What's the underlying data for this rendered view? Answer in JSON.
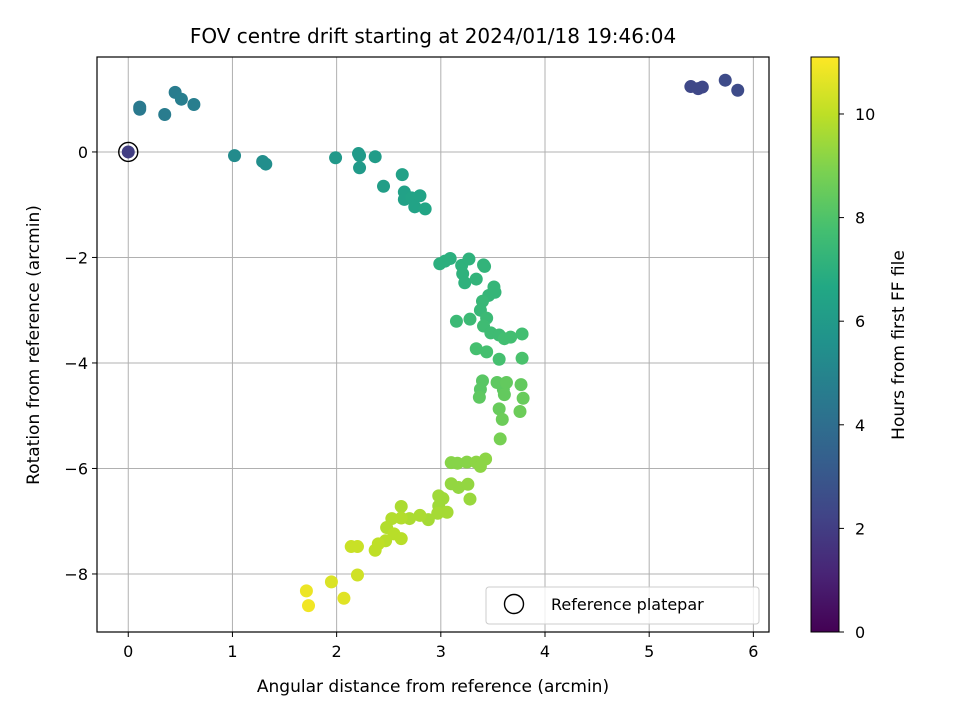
{
  "chart_data": {
    "type": "scatter",
    "title": "FOV centre drift starting at 2024/01/18 19:46:04",
    "xlabel": "Angular distance from reference (arcmin)",
    "ylabel": "Rotation from reference (arcmin)",
    "xlim": [
      -0.3,
      6.15
    ],
    "ylim": [
      -9.1,
      1.8
    ],
    "xticks": [
      0,
      1,
      2,
      3,
      4,
      5,
      6
    ],
    "xtick_labels": [
      "0",
      "1",
      "2",
      "3",
      "4",
      "5",
      "6"
    ],
    "yticks": [
      0,
      -2,
      -4,
      -6,
      -8
    ],
    "ytick_labels": [
      "0",
      "−2",
      "−4",
      "−6",
      "−8"
    ],
    "grid": true,
    "legend": {
      "position": "lower right",
      "entries": [
        "Reference platepar"
      ]
    },
    "reference_point": {
      "x": 0,
      "y": 0
    },
    "colorbar": {
      "label": "Hours from first FF file",
      "range": [
        0,
        11.1
      ],
      "ticks": [
        0,
        2,
        4,
        6,
        8,
        10
      ],
      "tick_labels": [
        "0",
        "2",
        "4",
        "6",
        "8",
        "10"
      ],
      "colormap": "viridis"
    },
    "points": [
      {
        "x": 0.0,
        "y": 0.0,
        "h": 2.0
      },
      {
        "x": 5.4,
        "y": 1.24,
        "h": 2.4
      },
      {
        "x": 5.47,
        "y": 1.2,
        "h": 2.4
      },
      {
        "x": 5.51,
        "y": 1.23,
        "h": 2.4
      },
      {
        "x": 5.73,
        "y": 1.36,
        "h": 2.5
      },
      {
        "x": 5.85,
        "y": 1.17,
        "h": 2.5
      },
      {
        "x": 0.11,
        "y": 0.81,
        "h": 4.5
      },
      {
        "x": 0.11,
        "y": 0.85,
        "h": 4.5
      },
      {
        "x": 0.35,
        "y": 0.71,
        "h": 4.6
      },
      {
        "x": 0.45,
        "y": 1.13,
        "h": 4.6
      },
      {
        "x": 0.51,
        "y": 1.0,
        "h": 4.7
      },
      {
        "x": 0.63,
        "y": 0.9,
        "h": 4.7
      },
      {
        "x": 1.02,
        "y": -0.07,
        "h": 5.3
      },
      {
        "x": 1.29,
        "y": -0.18,
        "h": 5.4
      },
      {
        "x": 1.32,
        "y": -0.23,
        "h": 5.4
      },
      {
        "x": 1.99,
        "y": -0.11,
        "h": 5.9
      },
      {
        "x": 2.21,
        "y": -0.03,
        "h": 6.0
      },
      {
        "x": 2.22,
        "y": -0.07,
        "h": 6.0
      },
      {
        "x": 2.22,
        "y": -0.3,
        "h": 6.0
      },
      {
        "x": 2.37,
        "y": -0.09,
        "h": 6.1
      },
      {
        "x": 2.45,
        "y": -0.65,
        "h": 6.2
      },
      {
        "x": 2.63,
        "y": -0.43,
        "h": 6.3
      },
      {
        "x": 2.65,
        "y": -0.76,
        "h": 6.3
      },
      {
        "x": 2.65,
        "y": -0.9,
        "h": 6.3
      },
      {
        "x": 2.72,
        "y": -0.87,
        "h": 6.4
      },
      {
        "x": 2.75,
        "y": -1.04,
        "h": 6.4
      },
      {
        "x": 2.8,
        "y": -0.83,
        "h": 6.4
      },
      {
        "x": 2.85,
        "y": -1.08,
        "h": 6.5
      },
      {
        "x": 2.99,
        "y": -2.12,
        "h": 7.0
      },
      {
        "x": 3.04,
        "y": -2.07,
        "h": 7.0
      },
      {
        "x": 3.09,
        "y": -2.02,
        "h": 7.0
      },
      {
        "x": 3.2,
        "y": -2.15,
        "h": 7.1
      },
      {
        "x": 3.21,
        "y": -2.31,
        "h": 7.1
      },
      {
        "x": 3.23,
        "y": -2.48,
        "h": 7.1
      },
      {
        "x": 3.27,
        "y": -2.03,
        "h": 7.1
      },
      {
        "x": 3.34,
        "y": -2.41,
        "h": 7.2
      },
      {
        "x": 3.41,
        "y": -2.14,
        "h": 7.2
      },
      {
        "x": 3.42,
        "y": -2.17,
        "h": 7.2
      },
      {
        "x": 3.46,
        "y": -2.72,
        "h": 7.3
      },
      {
        "x": 3.51,
        "y": -2.56,
        "h": 7.3
      },
      {
        "x": 3.52,
        "y": -2.66,
        "h": 7.3
      },
      {
        "x": 3.4,
        "y": -2.83,
        "h": 7.4
      },
      {
        "x": 3.38,
        "y": -3.0,
        "h": 7.4
      },
      {
        "x": 3.44,
        "y": -3.15,
        "h": 7.5
      },
      {
        "x": 3.15,
        "y": -3.21,
        "h": 7.5
      },
      {
        "x": 3.28,
        "y": -3.17,
        "h": 7.5
      },
      {
        "x": 3.41,
        "y": -3.3,
        "h": 7.6
      },
      {
        "x": 3.48,
        "y": -3.43,
        "h": 7.6
      },
      {
        "x": 3.56,
        "y": -3.47,
        "h": 7.6
      },
      {
        "x": 3.61,
        "y": -3.54,
        "h": 7.7
      },
      {
        "x": 3.67,
        "y": -3.51,
        "h": 7.7
      },
      {
        "x": 3.78,
        "y": -3.45,
        "h": 7.7
      },
      {
        "x": 3.34,
        "y": -3.73,
        "h": 7.8
      },
      {
        "x": 3.44,
        "y": -3.79,
        "h": 7.8
      },
      {
        "x": 3.56,
        "y": -3.93,
        "h": 7.8
      },
      {
        "x": 3.78,
        "y": -3.91,
        "h": 7.9
      },
      {
        "x": 3.4,
        "y": -4.34,
        "h": 8.2
      },
      {
        "x": 3.38,
        "y": -4.5,
        "h": 8.2
      },
      {
        "x": 3.37,
        "y": -4.65,
        "h": 8.3
      },
      {
        "x": 3.54,
        "y": -4.37,
        "h": 8.3
      },
      {
        "x": 3.6,
        "y": -4.5,
        "h": 8.3
      },
      {
        "x": 3.63,
        "y": -4.37,
        "h": 8.4
      },
      {
        "x": 3.61,
        "y": -4.6,
        "h": 8.4
      },
      {
        "x": 3.77,
        "y": -4.41,
        "h": 8.4
      },
      {
        "x": 3.79,
        "y": -4.67,
        "h": 8.5
      },
      {
        "x": 3.56,
        "y": -4.87,
        "h": 8.5
      },
      {
        "x": 3.59,
        "y": -5.07,
        "h": 8.6
      },
      {
        "x": 3.76,
        "y": -4.92,
        "h": 8.6
      },
      {
        "x": 3.57,
        "y": -5.44,
        "h": 8.8
      },
      {
        "x": 3.1,
        "y": -5.89,
        "h": 9.1
      },
      {
        "x": 3.16,
        "y": -5.9,
        "h": 9.1
      },
      {
        "x": 3.25,
        "y": -5.88,
        "h": 9.1
      },
      {
        "x": 3.34,
        "y": -5.88,
        "h": 9.2
      },
      {
        "x": 3.43,
        "y": -5.82,
        "h": 9.2
      },
      {
        "x": 3.38,
        "y": -5.96,
        "h": 9.2
      },
      {
        "x": 3.1,
        "y": -6.29,
        "h": 9.3
      },
      {
        "x": 3.17,
        "y": -6.36,
        "h": 9.3
      },
      {
        "x": 3.26,
        "y": -6.3,
        "h": 9.3
      },
      {
        "x": 3.28,
        "y": -6.58,
        "h": 9.4
      },
      {
        "x": 2.98,
        "y": -6.52,
        "h": 9.5
      },
      {
        "x": 3.02,
        "y": -6.57,
        "h": 9.5
      },
      {
        "x": 2.98,
        "y": -6.71,
        "h": 9.5
      },
      {
        "x": 3.06,
        "y": -6.83,
        "h": 9.6
      },
      {
        "x": 2.97,
        "y": -6.85,
        "h": 9.6
      },
      {
        "x": 2.88,
        "y": -6.97,
        "h": 9.6
      },
      {
        "x": 2.8,
        "y": -6.89,
        "h": 9.7
      },
      {
        "x": 2.7,
        "y": -6.95,
        "h": 9.7
      },
      {
        "x": 2.62,
        "y": -6.72,
        "h": 9.7
      },
      {
        "x": 2.53,
        "y": -6.95,
        "h": 9.8
      },
      {
        "x": 2.62,
        "y": -6.94,
        "h": 9.8
      },
      {
        "x": 2.48,
        "y": -7.12,
        "h": 9.8
      },
      {
        "x": 2.55,
        "y": -7.24,
        "h": 9.9
      },
      {
        "x": 2.62,
        "y": -7.33,
        "h": 9.9
      },
      {
        "x": 2.47,
        "y": -7.37,
        "h": 9.9
      },
      {
        "x": 2.4,
        "y": -7.43,
        "h": 10.0
      },
      {
        "x": 2.37,
        "y": -7.55,
        "h": 10.0
      },
      {
        "x": 2.14,
        "y": -7.48,
        "h": 10.2
      },
      {
        "x": 2.2,
        "y": -7.48,
        "h": 10.2
      },
      {
        "x": 2.2,
        "y": -8.02,
        "h": 10.3
      },
      {
        "x": 1.95,
        "y": -8.15,
        "h": 10.5
      },
      {
        "x": 2.07,
        "y": -8.46,
        "h": 10.6
      },
      {
        "x": 1.71,
        "y": -8.32,
        "h": 10.8
      },
      {
        "x": 1.73,
        "y": -8.6,
        "h": 10.9
      }
    ]
  }
}
